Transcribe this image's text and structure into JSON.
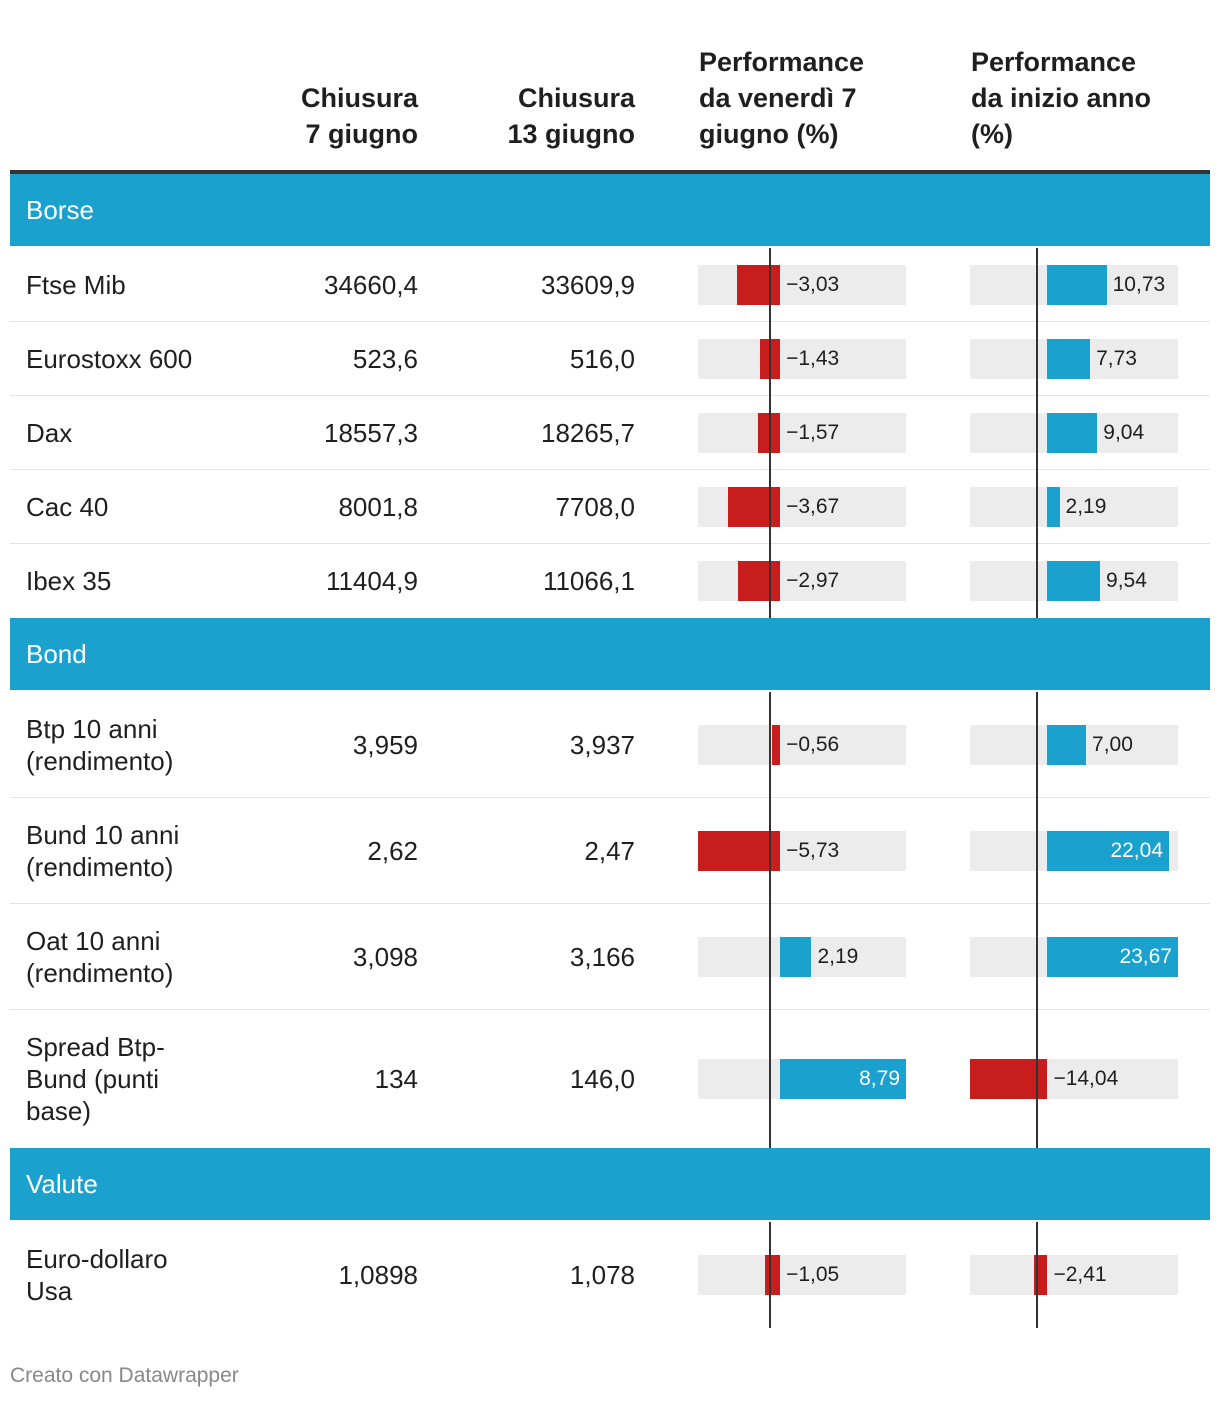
{
  "headers": {
    "col1": [
      "Chiusura",
      "7 giugno"
    ],
    "col2": [
      "Chiusura",
      "13 giugno"
    ],
    "col3": [
      "Performance",
      "da venerdì 7",
      "giugno (%)"
    ],
    "col4": [
      "Performance",
      "da inizio anno",
      "(%)"
    ]
  },
  "groups": [
    "Borse",
    "Bond",
    "Valute"
  ],
  "rows": [
    {
      "group": 0,
      "name": [
        "Ftse Mib"
      ],
      "close7": "34660,4",
      "close13": "33609,9",
      "perf_week": -3.03,
      "perf_week_label": "−3,03",
      "perf_ytd": 10.73,
      "perf_ytd_label": "10,73"
    },
    {
      "group": 0,
      "name": [
        "Eurostoxx 600"
      ],
      "close7": "523,6",
      "close13": "516,0",
      "perf_week": -1.43,
      "perf_week_label": "−1,43",
      "perf_ytd": 7.73,
      "perf_ytd_label": "7,73"
    },
    {
      "group": 0,
      "name": [
        "Dax"
      ],
      "close7": "18557,3",
      "close13": "18265,7",
      "perf_week": -1.57,
      "perf_week_label": "−1,57",
      "perf_ytd": 9.04,
      "perf_ytd_label": "9,04"
    },
    {
      "group": 0,
      "name": [
        "Cac 40"
      ],
      "close7": "8001,8",
      "close13": "7708,0",
      "perf_week": -3.67,
      "perf_week_label": "−3,67",
      "perf_ytd": 2.19,
      "perf_ytd_label": "2,19"
    },
    {
      "group": 0,
      "name": [
        "Ibex 35"
      ],
      "close7": "11404,9",
      "close13": "11066,1",
      "perf_week": -2.97,
      "perf_week_label": "−2,97",
      "perf_ytd": 9.54,
      "perf_ytd_label": "9,54"
    },
    {
      "group": 1,
      "name": [
        "Btp 10 anni",
        "(rendimento)"
      ],
      "close7": "3,959",
      "close13": "3,937",
      "perf_week": -0.56,
      "perf_week_label": "−0,56",
      "perf_ytd": 7.0,
      "perf_ytd_label": "7,00"
    },
    {
      "group": 1,
      "name": [
        "Bund 10 anni",
        "(rendimento)"
      ],
      "close7": "2,62",
      "close13": "2,47",
      "perf_week": -5.73,
      "perf_week_label": "−5,73",
      "perf_ytd": 22.04,
      "perf_ytd_label": "22,04"
    },
    {
      "group": 1,
      "name": [
        "Oat 10 anni",
        "(rendimento)"
      ],
      "close7": "3,098",
      "close13": "3,166",
      "perf_week": 2.19,
      "perf_week_label": "2,19",
      "perf_ytd": 23.67,
      "perf_ytd_label": "23,67"
    },
    {
      "group": 1,
      "name": [
        "Spread Btp-",
        "Bund (punti",
        "base)"
      ],
      "close7": "134",
      "close13": "146,0",
      "perf_week": 8.79,
      "perf_week_label": "8,79",
      "perf_ytd": -14.04,
      "perf_ytd_label": "−14,04"
    },
    {
      "group": 2,
      "name": [
        "Euro-dollaro",
        "Usa"
      ],
      "close7": "1,0898",
      "close13": "1,078",
      "perf_week": -1.05,
      "perf_week_label": "−1,05",
      "perf_ytd": -2.41,
      "perf_ytd_label": "−2,41"
    }
  ],
  "chart_data": {
    "type": "table",
    "title": "",
    "columns": [
      "Chiusura 7 giugno",
      "Chiusura 13 giugno",
      "Performance da venerdì 7 giugno (%)",
      "Performance da inizio anno (%)"
    ],
    "categories": [
      "Ftse Mib",
      "Eurostoxx 600",
      "Dax",
      "Cac 40",
      "Ibex 35",
      "Btp 10 anni (rendimento)",
      "Bund 10 anni (rendimento)",
      "Oat 10 anni (rendimento)",
      "Spread Btp-Bund (punti base)",
      "Euro-dollaro Usa"
    ],
    "series": [
      {
        "name": "Performance da venerdì 7 giugno (%)",
        "values": [
          -3.03,
          -1.43,
          -1.57,
          -3.67,
          -2.97,
          -0.56,
          -5.73,
          2.19,
          8.79,
          -1.05
        ]
      },
      {
        "name": "Performance da inizio anno (%)",
        "values": [
          10.73,
          7.73,
          9.04,
          2.19,
          9.54,
          7.0,
          22.04,
          23.67,
          -14.04,
          -2.41
        ]
      }
    ],
    "bar_ranges": {
      "perf_week": [
        -5.73,
        8.79
      ],
      "perf_ytd": [
        -14.04,
        23.67
      ]
    }
  },
  "colors": {
    "accent": "#1aa1cd",
    "negative": "#c71e1d",
    "positive": "#1aa1cd",
    "bar_bg": "#ececec"
  },
  "footer": "Creato con Datawrapper"
}
